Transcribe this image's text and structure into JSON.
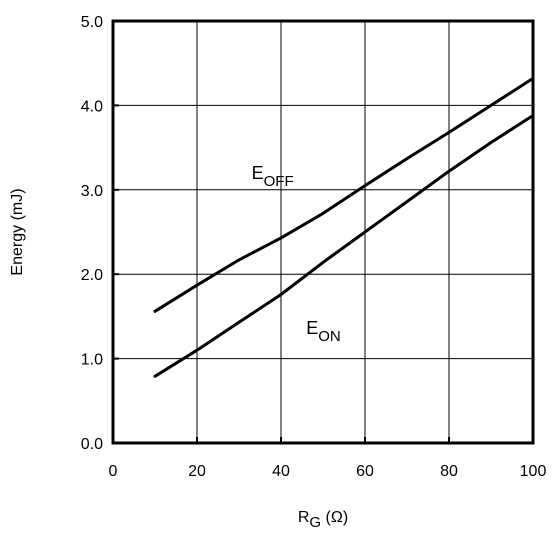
{
  "chart_data": {
    "type": "line",
    "title": "",
    "xlabel": {
      "main": "R",
      "sub": "G",
      "unit": " (Ω)"
    },
    "ylabel": "Energy (mJ)",
    "xlim": [
      0,
      100
    ],
    "ylim": [
      0,
      5
    ],
    "xticks": [
      0,
      20,
      40,
      60,
      80,
      100
    ],
    "xtick_labels": [
      "0",
      "20",
      "40",
      "60",
      "80",
      "100"
    ],
    "yticks": [
      0,
      1,
      2,
      3,
      4,
      5
    ],
    "ytick_labels": [
      "0.0",
      "1.0",
      "2.0",
      "3.0",
      "4.0",
      "5.0"
    ],
    "grid": true,
    "colors": {
      "line": "#000000",
      "grid": "#000000",
      "background": "#ffffff"
    },
    "series": [
      {
        "label_main": "E",
        "label_sub": "OFF",
        "label_at": [
          33,
          3.13
        ],
        "x": [
          10,
          20,
          30,
          40,
          50,
          60,
          70,
          80,
          90,
          100
        ],
        "y": [
          1.56,
          1.87,
          2.17,
          2.43,
          2.72,
          3.05,
          3.37,
          3.68,
          4.0,
          4.32
        ]
      },
      {
        "label_main": "E",
        "label_sub": "ON",
        "label_at": [
          46,
          1.29
        ],
        "x": [
          10,
          20,
          30,
          40,
          50,
          60,
          70,
          80,
          90,
          100
        ],
        "y": [
          0.79,
          1.1,
          1.43,
          1.76,
          2.14,
          2.5,
          2.86,
          3.22,
          3.56,
          3.88
        ]
      }
    ]
  }
}
